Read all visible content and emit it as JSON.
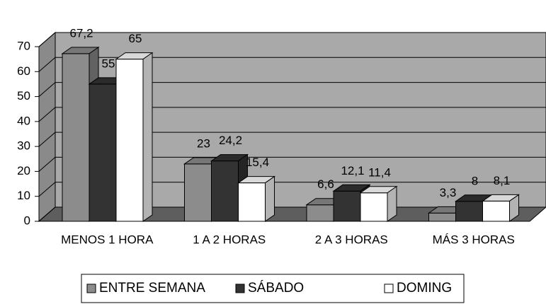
{
  "chart_data": {
    "type": "bar",
    "categories": [
      "MENOS 1 HORA",
      "1 A 2 HORAS",
      "2 A 3 HORAS",
      "MÁS 3 HORAS"
    ],
    "series": [
      {
        "name": "ENTRE SEMANA",
        "color": "#8c8c8c",
        "values": [
          67.2,
          23,
          6.6,
          3.3
        ],
        "value_labels": [
          "67,2",
          "23",
          "6,6",
          "3,3"
        ]
      },
      {
        "name": "SÁBADO",
        "color": "#333333",
        "values": [
          55,
          24.2,
          12.1,
          8
        ],
        "value_labels": [
          "55",
          "24,2",
          "12,1",
          "8"
        ]
      },
      {
        "name": "DOMING",
        "color": "#ffffff",
        "values": [
          65,
          15.4,
          11.4,
          8.1
        ],
        "value_labels": [
          "65",
          "15,4",
          "11,4",
          "8,1"
        ]
      }
    ],
    "ylim": [
      0,
      70
    ],
    "yticks": [
      0,
      10,
      20,
      30,
      40,
      50,
      60,
      70
    ],
    "grid": true,
    "legend": "bottom"
  }
}
